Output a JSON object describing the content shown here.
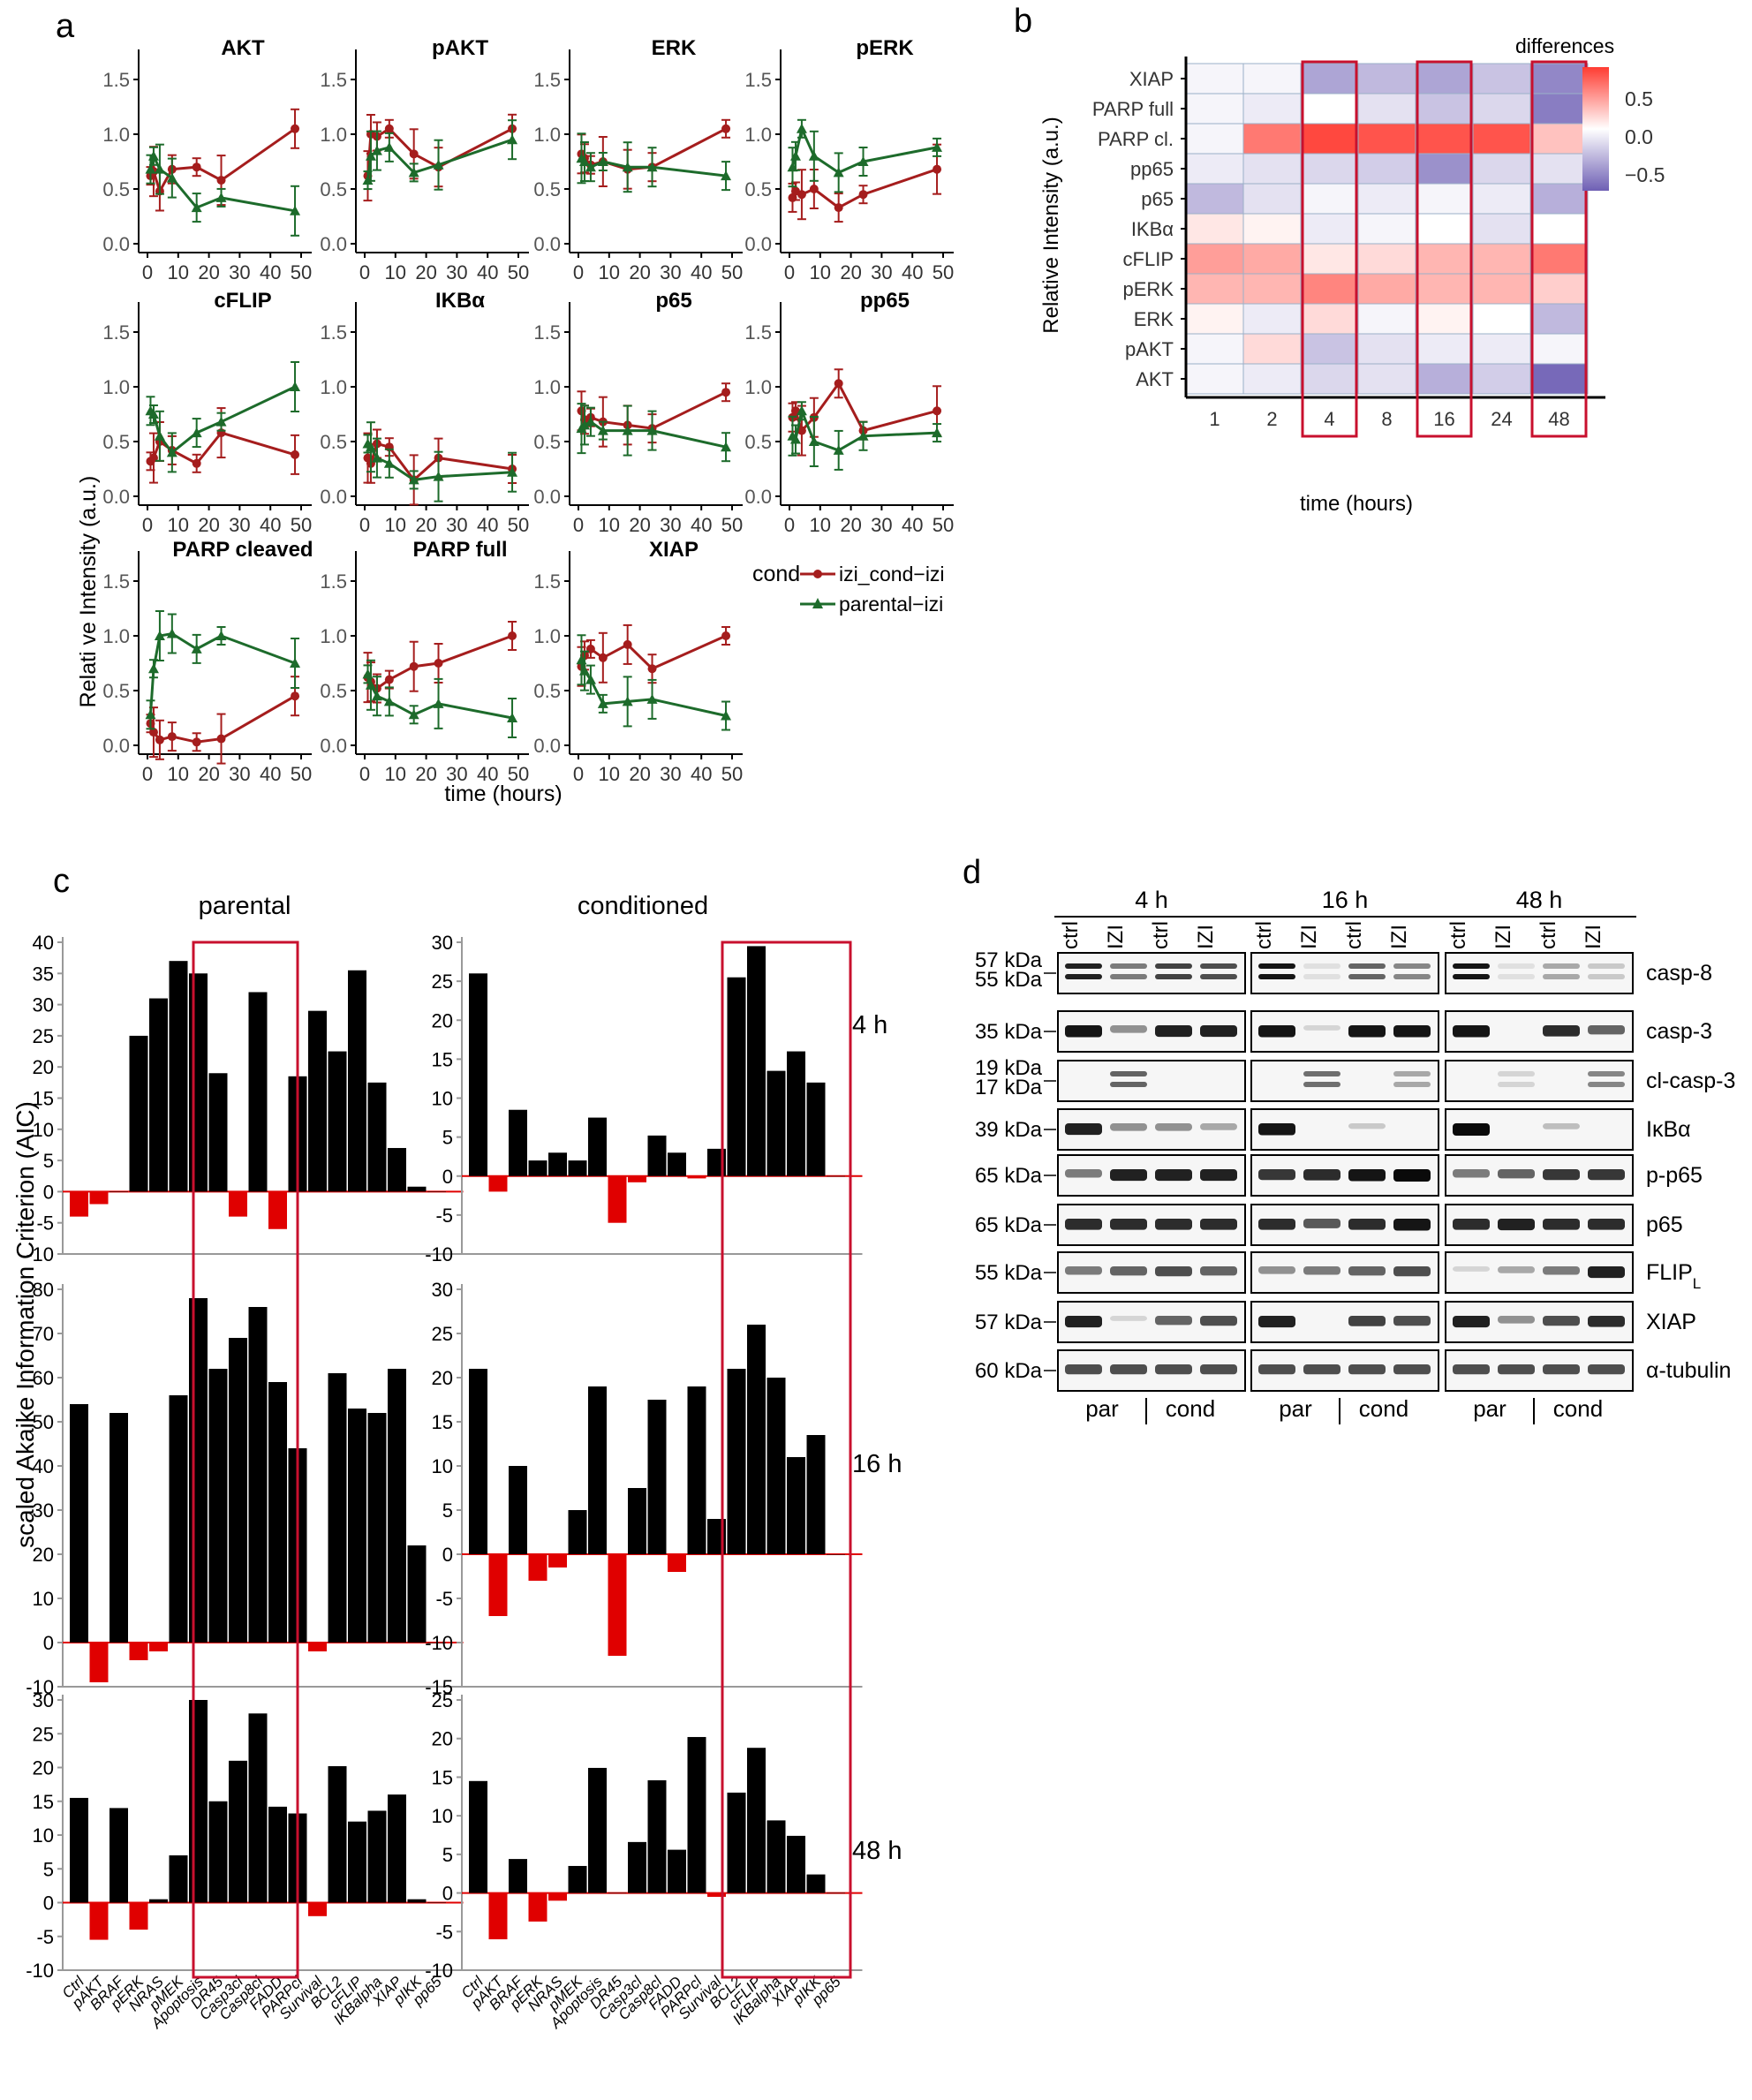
{
  "panels": {
    "a": "a",
    "b": "b",
    "c": "c",
    "d": "d"
  },
  "colors": {
    "cond": "#a51d1d",
    "parental": "#1d6b2b",
    "neg_bar": "#e00000",
    "box": "#c8102e"
  },
  "panel_a": {
    "ylabel": "Relati ve Intensity (a.u.)",
    "xlabel": "time (hours)",
    "yticks": [
      "0.0",
      "0.5",
      "1.0",
      "1.5"
    ],
    "xticks": [
      "0",
      "10",
      "20",
      "30",
      "40",
      "50"
    ],
    "legend": {
      "title": "cond",
      "series": [
        "izi_cond−izi",
        "parental−izi"
      ]
    }
  },
  "chart_data": [
    {
      "type": "line",
      "panel": "a",
      "xlabel": "time (hours)",
      "ylabel": "Relati ve Intensity (a.u.)",
      "xlim": [
        0,
        50
      ],
      "ylim": [
        0,
        1.5
      ],
      "x": [
        1,
        2,
        4,
        8,
        16,
        24,
        48
      ],
      "facets": [
        {
          "title": "AKT",
          "series": [
            {
              "name": "izi_cond−izi",
              "values": [
                0.62,
                0.66,
                0.48,
                0.68,
                0.7,
                0.58,
                1.05
              ]
            },
            {
              "name": "parental−izi",
              "values": [
                0.68,
                0.8,
                0.68,
                0.6,
                0.33,
                0.42,
                0.3
              ]
            }
          ]
        },
        {
          "title": "pAKT",
          "series": [
            {
              "name": "izi_cond−izi",
              "values": [
                0.62,
                1.0,
                0.98,
                1.05,
                0.82,
                0.7,
                1.05
              ]
            },
            {
              "name": "parental−izi",
              "values": [
                0.58,
                0.8,
                0.85,
                0.88,
                0.65,
                0.72,
                0.95
              ]
            }
          ]
        },
        {
          "title": "ERK",
          "series": [
            {
              "name": "izi_cond−izi",
              "values": [
                0.82,
                0.78,
                0.72,
                0.75,
                0.68,
                0.7,
                1.05
              ]
            },
            {
              "name": "parental−izi",
              "values": [
                0.78,
                0.75,
                0.7,
                0.75,
                0.7,
                0.7,
                0.62
              ]
            }
          ]
        },
        {
          "title": "pERK",
          "series": [
            {
              "name": "izi_cond−izi",
              "values": [
                0.42,
                0.48,
                0.45,
                0.5,
                0.33,
                0.45,
                0.68
              ]
            },
            {
              "name": "parental−izi",
              "values": [
                0.7,
                0.8,
                1.05,
                0.8,
                0.65,
                0.75,
                0.88
              ]
            }
          ]
        },
        {
          "title": "cFLIP",
          "series": [
            {
              "name": "izi_cond−izi",
              "values": [
                0.32,
                0.35,
                0.5,
                0.42,
                0.3,
                0.58,
                0.38
              ]
            },
            {
              "name": "parental−izi",
              "values": [
                0.78,
                0.75,
                0.55,
                0.4,
                0.58,
                0.68,
                1.0
              ]
            }
          ]
        },
        {
          "title": "IKBα",
          "series": [
            {
              "name": "izi_cond−izi",
              "values": [
                0.35,
                0.3,
                0.48,
                0.45,
                0.15,
                0.35,
                0.25
              ]
            },
            {
              "name": "parental−izi",
              "values": [
                0.48,
                0.45,
                0.35,
                0.3,
                0.15,
                0.18,
                0.22
              ]
            }
          ]
        },
        {
          "title": "p65",
          "series": [
            {
              "name": "izi_cond−izi",
              "values": [
                0.78,
                0.7,
                0.72,
                0.68,
                0.65,
                0.62,
                0.95
              ]
            },
            {
              "name": "parental−izi",
              "values": [
                0.62,
                0.65,
                0.68,
                0.6,
                0.6,
                0.6,
                0.45
              ]
            }
          ]
        },
        {
          "title": "pp65",
          "series": [
            {
              "name": "izi_cond−izi",
              "values": [
                0.72,
                0.78,
                0.6,
                0.72,
                1.03,
                0.6,
                0.78
              ]
            },
            {
              "name": "parental−izi",
              "values": [
                0.55,
                0.52,
                0.78,
                0.5,
                0.42,
                0.55,
                0.58
              ]
            }
          ]
        },
        {
          "title": "PARP cleaved",
          "series": [
            {
              "name": "izi_cond−izi",
              "values": [
                0.2,
                0.12,
                0.05,
                0.08,
                0.03,
                0.06,
                0.45
              ]
            },
            {
              "name": "parental−izi",
              "values": [
                0.28,
                0.7,
                1.0,
                1.02,
                0.88,
                1.0,
                0.75
              ]
            }
          ]
        },
        {
          "title": "PARP full",
          "series": [
            {
              "name": "izi_cond−izi",
              "values": [
                0.62,
                0.58,
                0.52,
                0.6,
                0.72,
                0.75,
                1.0
              ]
            },
            {
              "name": "parental−izi",
              "values": [
                0.65,
                0.55,
                0.45,
                0.4,
                0.28,
                0.38,
                0.25
              ]
            }
          ]
        },
        {
          "title": "XIAP",
          "series": [
            {
              "name": "izi_cond−izi",
              "values": [
                0.72,
                0.82,
                0.88,
                0.8,
                0.92,
                0.7,
                1.0
              ]
            },
            {
              "name": "parental−izi",
              "values": [
                0.78,
                0.68,
                0.6,
                0.38,
                0.4,
                0.42,
                0.27
              ]
            }
          ]
        }
      ]
    },
    {
      "type": "heatmap",
      "panel": "b",
      "ylabel": "Relative Intensity (a.u.)",
      "xlabel": "time (hours)",
      "legend_title": "differences",
      "legend_ticks": [
        "0.5",
        "0.0",
        "−0.5"
      ],
      "x": [
        "1",
        "2",
        "4",
        "8",
        "16",
        "24",
        "48"
      ],
      "y": [
        "XIAP",
        "PARP full",
        "PARP cl.",
        "pp65",
        "p65",
        "IKBα",
        "cFLIP",
        "pERK",
        "ERK",
        "pAKT",
        "AKT"
      ],
      "highlighted": [
        "4",
        "16",
        "48"
      ],
      "values": [
        [
          -0.05,
          -0.05,
          -0.45,
          -0.35,
          -0.45,
          -0.3,
          -0.6
        ],
        [
          -0.05,
          -0.1,
          0.0,
          -0.15,
          -0.3,
          -0.2,
          -0.65
        ],
        [
          -0.05,
          0.55,
          0.75,
          0.7,
          0.7,
          0.7,
          0.25
        ],
        [
          -0.1,
          -0.15,
          -0.2,
          -0.25,
          -0.55,
          -0.2,
          -0.15
        ],
        [
          -0.35,
          -0.15,
          -0.05,
          -0.1,
          -0.05,
          -0.1,
          -0.4
        ],
        [
          0.1,
          0.05,
          -0.1,
          -0.05,
          0.0,
          -0.15,
          0.0
        ],
        [
          0.4,
          0.35,
          0.1,
          0.15,
          0.3,
          0.3,
          0.55
        ],
        [
          0.3,
          0.3,
          0.5,
          0.35,
          0.3,
          0.3,
          0.2
        ],
        [
          0.05,
          -0.1,
          0.15,
          -0.05,
          0.05,
          0.0,
          -0.35
        ],
        [
          -0.05,
          0.15,
          -0.3,
          -0.15,
          -0.1,
          -0.1,
          -0.05
        ],
        [
          -0.05,
          -0.1,
          -0.2,
          -0.15,
          -0.4,
          -0.25,
          -0.75
        ]
      ]
    },
    {
      "type": "bar",
      "panel": "c",
      "ylabel": "scaled Akaike Information Criterion (AIC)",
      "categories": [
        "Ctrl",
        "pAKT",
        "BRAF",
        "pERK",
        "NRAS",
        "pMEK",
        "Apoptosis",
        "DR45",
        "Casp3cl",
        "Casp8cl",
        "FADD",
        "PARPcl",
        "Survival",
        "BCL2",
        "cFLIP",
        "IKBalpha",
        "XIAP",
        "pIKK",
        "pp65"
      ],
      "columns": [
        "parental",
        "conditioned"
      ],
      "rows": [
        "4 h",
        "16 h",
        "48 h"
      ],
      "subplots": [
        {
          "col": "parental",
          "row": "4 h",
          "ylim": [
            -10,
            40
          ],
          "yticks": [
            "-10",
            "-5",
            "0",
            "5",
            "10",
            "15",
            "20",
            "25",
            "30",
            "35",
            "40"
          ],
          "values": [
            -4,
            -2,
            0,
            25,
            31,
            37,
            35,
            19,
            -4,
            32,
            -6,
            18.5,
            29,
            22.5,
            35.5,
            17.5,
            7,
            0.8,
            0
          ]
        },
        {
          "col": "conditioned",
          "row": "4 h",
          "ylim": [
            -10,
            30
          ],
          "yticks": [
            "-10",
            "-5",
            "0",
            "5",
            "10",
            "15",
            "20",
            "25",
            "30"
          ],
          "values": [
            26,
            -2,
            8.5,
            2,
            3,
            2,
            7.5,
            -6,
            -0.8,
            5.2,
            3,
            -0.3,
            3.5,
            25.5,
            29.5,
            13.5,
            16,
            12,
            0
          ]
        },
        {
          "col": "parental",
          "row": "16 h",
          "ylim": [
            -10,
            80
          ],
          "yticks": [
            "-10",
            "0",
            "10",
            "20",
            "30",
            "40",
            "50",
            "60",
            "70",
            "80"
          ],
          "values": [
            54,
            -9,
            52,
            -4,
            -2,
            56,
            78,
            62,
            69,
            76,
            59,
            44,
            -2,
            61,
            53,
            52,
            62,
            22,
            0
          ]
        },
        {
          "col": "conditioned",
          "row": "16 h",
          "ylim": [
            -15,
            30
          ],
          "yticks": [
            "-15",
            "-10",
            "-5",
            "0",
            "5",
            "10",
            "15",
            "20",
            "25",
            "30"
          ],
          "values": [
            21,
            -7,
            10,
            -3,
            -1.5,
            5,
            19,
            -11.5,
            7.5,
            17.5,
            -2,
            19,
            4,
            21,
            26,
            20,
            11,
            13.5,
            0
          ]
        },
        {
          "col": "parental",
          "row": "48 h",
          "ylim": [
            -10,
            30
          ],
          "yticks": [
            "-10",
            "-5",
            "0",
            "5",
            "10",
            "15",
            "20",
            "25",
            "30"
          ],
          "values": [
            15.5,
            -5.5,
            14,
            -4,
            0.5,
            7,
            30,
            15,
            21,
            28,
            14.2,
            13.2,
            -2,
            20.2,
            12,
            13.6,
            16,
            0.5,
            0
          ]
        },
        {
          "col": "conditioned",
          "row": "48 h",
          "ylim": [
            -10,
            25
          ],
          "yticks": [
            "-10",
            "-5",
            "0",
            "5",
            "10",
            "15",
            "20",
            "25"
          ],
          "values": [
            14.5,
            -6,
            4.4,
            -3.7,
            -1,
            3.5,
            16.2,
            0,
            6.6,
            14.6,
            5.6,
            20.2,
            -0.5,
            13,
            18.8,
            9.4,
            7.4,
            2.4,
            0
          ]
        }
      ]
    }
  ],
  "panel_d": {
    "times": [
      "4 h",
      "16 h",
      "48 h"
    ],
    "lanes": [
      "ctrl",
      "IZI",
      "ctrl",
      "IZI"
    ],
    "groups": [
      "par",
      "cond"
    ],
    "rows": [
      {
        "mw": [
          "57 kDa",
          "55 kDa"
        ],
        "label": "casp-8",
        "sub": ""
      },
      {
        "mw": [
          "35 kDa"
        ],
        "label": "casp-3",
        "sub": ""
      },
      {
        "mw": [
          "19 kDa",
          "17 kDa"
        ],
        "label": "cl-casp-3",
        "sub": ""
      },
      {
        "mw": [
          "39 kDa"
        ],
        "label": "IκBα",
        "sub": ""
      },
      {
        "mw": [
          "65 kDa"
        ],
        "label": "p-p65",
        "sub": ""
      },
      {
        "mw": [
          "65 kDa"
        ],
        "label": "p65",
        "sub": ""
      },
      {
        "mw": [
          "55 kDa"
        ],
        "label": "FLIP",
        "sub": "L"
      },
      {
        "mw": [
          "57 kDa"
        ],
        "label": "XIAP",
        "sub": ""
      },
      {
        "mw": [
          "60 kDa"
        ],
        "label": "α-tubulin",
        "sub": ""
      }
    ],
    "intensities": [
      [
        [
          0.9,
          0.5,
          0.75,
          0.7
        ],
        [
          0.95,
          0.05,
          0.6,
          0.45
        ],
        [
          0.95,
          0.05,
          0.3,
          0.15
        ]
      ],
      [
        [
          0.95,
          0.4,
          0.9,
          0.9
        ],
        [
          0.95,
          0.1,
          0.95,
          0.95
        ],
        [
          0.95,
          0.0,
          0.85,
          0.6
        ]
      ],
      [
        [
          0.0,
          0.6,
          0.0,
          0.0
        ],
        [
          0.0,
          0.55,
          0.0,
          0.3
        ],
        [
          0.0,
          0.1,
          0.0,
          0.45
        ]
      ],
      [
        [
          0.9,
          0.4,
          0.4,
          0.3
        ],
        [
          0.95,
          0.0,
          0.15,
          0.0
        ],
        [
          1.0,
          0.0,
          0.2,
          0.0
        ]
      ],
      [
        [
          0.5,
          0.9,
          0.9,
          0.9
        ],
        [
          0.8,
          0.85,
          0.95,
          1.0
        ],
        [
          0.5,
          0.6,
          0.8,
          0.8
        ]
      ],
      [
        [
          0.85,
          0.85,
          0.85,
          0.85
        ],
        [
          0.85,
          0.65,
          0.85,
          0.95
        ],
        [
          0.85,
          0.9,
          0.85,
          0.85
        ]
      ],
      [
        [
          0.5,
          0.6,
          0.7,
          0.6
        ],
        [
          0.4,
          0.5,
          0.6,
          0.7
        ],
        [
          0.1,
          0.3,
          0.5,
          0.9
        ]
      ],
      [
        [
          0.9,
          0.1,
          0.6,
          0.7
        ],
        [
          0.9,
          0.0,
          0.75,
          0.7
        ],
        [
          0.9,
          0.4,
          0.7,
          0.85
        ]
      ],
      [
        [
          0.7,
          0.7,
          0.7,
          0.7
        ],
        [
          0.7,
          0.7,
          0.7,
          0.7
        ],
        [
          0.7,
          0.7,
          0.7,
          0.7
        ]
      ]
    ]
  }
}
